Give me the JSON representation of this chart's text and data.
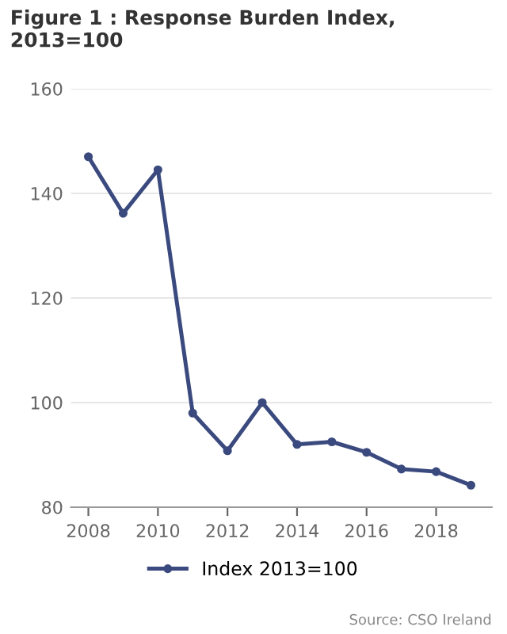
{
  "chart_data": {
    "type": "line",
    "title": "Figure 1 : Response Burden Index,\n2013=100",
    "x": [
      2008,
      2009,
      2010,
      2011,
      2012,
      2013,
      2014,
      2015,
      2016,
      2017,
      2018,
      2019
    ],
    "series": [
      {
        "name": "Index 2013=100",
        "color": "#3b4a7e",
        "values": [
          147,
          136.2,
          144.5,
          98,
          90.8,
          100,
          92,
          92.5,
          90.5,
          87.3,
          86.8,
          84.2
        ]
      }
    ],
    "xlim": [
      2007.5,
      2019.6
    ],
    "xticks": [
      2008,
      2010,
      2012,
      2014,
      2016,
      2018
    ],
    "ylim": [
      80,
      160
    ],
    "yticks": [
      80,
      100,
      120,
      140,
      160
    ],
    "grid": "y",
    "legend": "bottom",
    "marker": "circle",
    "line_style": "solid",
    "annotations": [
      "Source: CSO Ireland"
    ]
  }
}
